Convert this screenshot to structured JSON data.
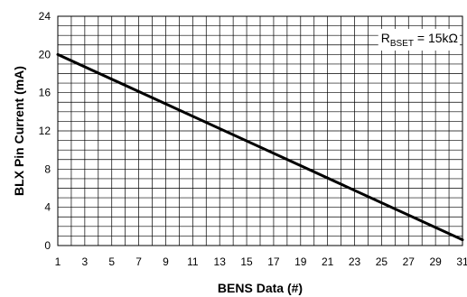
{
  "chart_data": {
    "type": "line",
    "title": "",
    "xlabel": "BENS Data (#)",
    "ylabel": "BLX Pin Current (mA)",
    "xlim": [
      1,
      31
    ],
    "ylim": [
      0,
      24
    ],
    "x_ticks": [
      1,
      3,
      5,
      7,
      9,
      11,
      13,
      15,
      17,
      19,
      21,
      23,
      25,
      27,
      29,
      31
    ],
    "y_ticks": [
      0,
      4,
      8,
      12,
      16,
      20,
      24
    ],
    "grid": true,
    "series": [
      {
        "x": [
          1,
          31
        ],
        "y": [
          20,
          0.6
        ]
      }
    ],
    "annotation": {
      "symbol": "R",
      "subscript": "BSET",
      "text": " = 15kΩ"
    }
  }
}
